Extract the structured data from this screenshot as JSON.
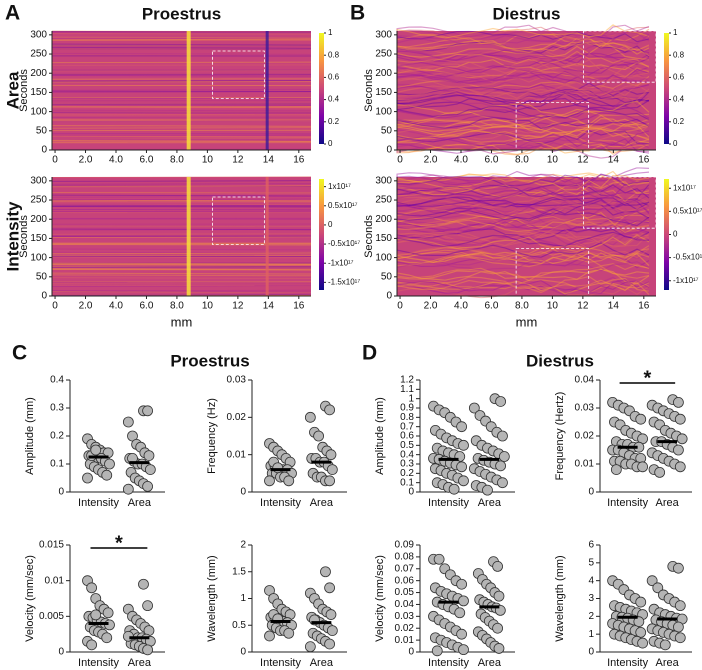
{
  "chart_data": [
    {
      "type": "heatmap",
      "panel": "A",
      "title": "Proestrus",
      "row_label": "Area",
      "ylabel": "Seconds",
      "xlim": [
        -0.2,
        16.8
      ],
      "xticks": [
        0,
        {
          "value": 2,
          "label": "2.0"
        },
        {
          "value": 4,
          "label": "4.0"
        },
        {
          "value": 6,
          "label": "6.0"
        },
        {
          "value": 8,
          "label": "8.0"
        },
        10,
        12,
        14,
        16
      ],
      "ylim": [
        0,
        310
      ],
      "yticks": [
        0,
        50,
        100,
        150,
        200,
        250,
        300
      ],
      "colorbar": {
        "lim": [
          0,
          1
        ],
        "ticks": [
          0,
          0.2,
          0.4,
          0.6,
          0.8,
          1
        ]
      }
    },
    {
      "type": "heatmap",
      "row_label": "Intensity",
      "ylabel": "Seconds",
      "xlabel": "mm",
      "xlim": [
        -0.2,
        16.8
      ],
      "xticks": [
        0,
        {
          "value": 2,
          "label": "2.0"
        },
        {
          "value": 4,
          "label": "4.0"
        },
        {
          "value": 6,
          "label": "6.0"
        },
        {
          "value": 8,
          "label": "8.0"
        },
        10,
        12,
        14,
        16
      ],
      "ylim": [
        0,
        310
      ],
      "yticks": [
        0,
        50,
        100,
        150,
        200,
        250,
        300
      ],
      "colorbar": {
        "lim": [
          -1.7e+17,
          1.2e+17
        ],
        "ticks": [
          {
            "value": 1e+17,
            "label": "1x10¹⁷"
          },
          {
            "value": 5e+16,
            "label": "0.5x10¹⁷"
          },
          0,
          {
            "value": -5e+16,
            "label": "-0.5x10¹⁷"
          },
          {
            "value": -1e+17,
            "label": "-1x10¹⁷"
          },
          {
            "value": -1.5e+17,
            "label": "-1.5x10¹⁷"
          }
        ]
      }
    },
    {
      "type": "heatmap",
      "panel": "B",
      "title": "Diestrus",
      "ylabel": "Seconds",
      "xlim": [
        -0.2,
        16.8
      ],
      "xticks": [
        0,
        {
          "value": 2,
          "label": "2.0"
        },
        {
          "value": 4,
          "label": "4.0"
        },
        {
          "value": 6,
          "label": "6.0"
        },
        {
          "value": 8,
          "label": "8.0"
        },
        10,
        12,
        14,
        16
      ],
      "ylim": [
        0,
        310
      ],
      "yticks": [
        0,
        50,
        100,
        150,
        200,
        250,
        300
      ],
      "colorbar": {
        "lim": [
          0,
          1
        ],
        "ticks": [
          0,
          0.2,
          0.4,
          0.6,
          0.8,
          1
        ]
      }
    },
    {
      "type": "heatmap",
      "ylabel": "Seconds",
      "xlabel": "mm",
      "xlim": [
        -0.2,
        16.8
      ],
      "xticks": [
        0,
        {
          "value": 2,
          "label": "2.0"
        },
        {
          "value": 4,
          "label": "4.0"
        },
        {
          "value": 6,
          "label": "6.0"
        },
        {
          "value": 8,
          "label": "8.0"
        },
        10,
        12,
        14,
        16
      ],
      "ylim": [
        0,
        310
      ],
      "yticks": [
        0,
        50,
        100,
        150,
        200,
        250,
        300
      ],
      "colorbar": {
        "lim": [
          -1.2e+17,
          1.2e+17
        ],
        "ticks": [
          {
            "value": 1e+17,
            "label": "1x10¹⁷"
          },
          {
            "value": 5e+16,
            "label": "0.5x10¹⁷"
          },
          0,
          {
            "value": -5e+16,
            "label": "-0.5x10¹⁷"
          },
          {
            "value": -1e+17,
            "label": "-1x10¹⁷"
          }
        ]
      }
    },
    {
      "type": "dot",
      "panel": "C",
      "title": "Proestrus",
      "ylabel": "Amplitude (mm)",
      "categories": [
        "Intensity",
        "Area"
      ],
      "color": "#b5b5b5",
      "ylim": [
        0,
        0.4
      ],
      "yticks": [
        0,
        0.1,
        0.2,
        0.3,
        0.4
      ],
      "medians": [
        0.125,
        0.105
      ],
      "values": [
        [
          0.19,
          0.17,
          0.16,
          0.15,
          0.14,
          0.14,
          0.13,
          0.13,
          0.12,
          0.12,
          0.11,
          0.1,
          0.1,
          0.09,
          0.08,
          0.07,
          0.06,
          0.05,
          0.13,
          0.15
        ],
        [
          0.29,
          0.29,
          0.25,
          0.2,
          0.17,
          0.16,
          0.14,
          0.13,
          0.12,
          0.11,
          0.1,
          0.1,
          0.09,
          0.08,
          0.07,
          0.05,
          0.04,
          0.03,
          0.02,
          0.01,
          0.12
        ]
      ]
    },
    {
      "type": "dot",
      "ylabel": "Frequency (Hz)",
      "categories": [
        "Intensity",
        "Area"
      ],
      "color": "#b5b5b5",
      "ylim": [
        0,
        0.03
      ],
      "yticks": [
        0,
        0.01,
        0.02,
        0.03
      ],
      "medians": [
        0.006,
        0.008
      ],
      "values": [
        [
          0.013,
          0.012,
          0.011,
          0.01,
          0.009,
          0.008,
          0.007,
          0.007,
          0.006,
          0.006,
          0.006,
          0.005,
          0.005,
          0.005,
          0.004,
          0.004,
          0.003,
          0.003,
          0.008,
          0.0065
        ],
        [
          0.023,
          0.022,
          0.02,
          0.016,
          0.015,
          0.012,
          0.011,
          0.01,
          0.009,
          0.009,
          0.008,
          0.008,
          0.007,
          0.006,
          0.005,
          0.004,
          0.004,
          0.003,
          0.003
        ]
      ]
    },
    {
      "type": "dot",
      "ylabel": "Velocity (mm/sec)",
      "categories": [
        "Intensity",
        "Area"
      ],
      "color": "#b5b5b5",
      "annotation": "*",
      "ylim": [
        0,
        0.015
      ],
      "yticks": [
        0,
        0.005,
        0.01,
        0.015
      ],
      "medians": [
        0.004,
        0.002
      ],
      "values": [
        [
          0.01,
          0.009,
          0.0075,
          0.0065,
          0.006,
          0.0055,
          0.005,
          0.0048,
          0.0045,
          0.0042,
          0.004,
          0.0038,
          0.0035,
          0.003,
          0.0028,
          0.0025,
          0.002,
          0.0015,
          0.001,
          0.0052
        ],
        [
          0.0095,
          0.0065,
          0.006,
          0.005,
          0.0045,
          0.004,
          0.0035,
          0.003,
          0.003,
          0.0025,
          0.002,
          0.002,
          0.0018,
          0.0015,
          0.0012,
          0.001,
          0.0008,
          0.0005,
          0.0003,
          0.0022
        ]
      ]
    },
    {
      "type": "dot",
      "ylabel": "Wavelength (mm)",
      "categories": [
        "Intensity",
        "Area"
      ],
      "color": "#b5b5b5",
      "ylim": [
        0,
        2
      ],
      "yticks": [
        0,
        0.5,
        1,
        1.5,
        2
      ],
      "medians": [
        0.57,
        0.55
      ],
      "values": [
        [
          1.15,
          1.0,
          0.9,
          0.8,
          0.75,
          0.7,
          0.65,
          0.6,
          0.6,
          0.57,
          0.55,
          0.5,
          0.5,
          0.45,
          0.4,
          0.4,
          0.35,
          0.3,
          0.7,
          0.62
        ],
        [
          1.5,
          1.2,
          1.1,
          1.0,
          0.9,
          0.8,
          0.75,
          0.7,
          0.65,
          0.6,
          0.55,
          0.5,
          0.45,
          0.4,
          0.35,
          0.3,
          0.25,
          0.2,
          0.15,
          0.1,
          0.6
        ]
      ]
    },
    {
      "type": "dot",
      "panel": "D",
      "title": "Diestrus",
      "ylabel": "Amplitude (mm)",
      "categories": [
        "Intensity",
        "Area"
      ],
      "color": "#b5b5b5",
      "ylim": [
        0,
        1.2
      ],
      "yticks": [
        0,
        0.1,
        0.2,
        0.3,
        0.4,
        0.5,
        0.6,
        0.7,
        0.8,
        0.9,
        1,
        1.1,
        1.2
      ],
      "medians": [
        0.35,
        0.35
      ],
      "values": [
        [
          0.92,
          0.88,
          0.85,
          0.8,
          0.75,
          0.7,
          0.66,
          0.62,
          0.58,
          0.55,
          0.52,
          0.5,
          0.47,
          0.44,
          0.42,
          0.4,
          0.38,
          0.36,
          0.35,
          0.33,
          0.31,
          0.29,
          0.27,
          0.25,
          0.23,
          0.2,
          0.18,
          0.15,
          0.12,
          0.1,
          0.08,
          0.05,
          0.03
        ],
        [
          1.0,
          0.97,
          0.9,
          0.82,
          0.76,
          0.7,
          0.64,
          0.6,
          0.55,
          0.5,
          0.47,
          0.44,
          0.41,
          0.38,
          0.36,
          0.34,
          0.32,
          0.3,
          0.28,
          0.25,
          0.22,
          0.19,
          0.16,
          0.13,
          0.1,
          0.07,
          0.05,
          0.02
        ]
      ]
    },
    {
      "type": "dot",
      "ylabel": "Frequency (Hertz)",
      "categories": [
        "Intensity",
        "Area"
      ],
      "color": "#b5b5b5",
      "annotation": "*",
      "ylim": [
        0,
        0.04
      ],
      "yticks": [
        0,
        0.01,
        0.02,
        0.03,
        0.04
      ],
      "medians": [
        0.016,
        0.018
      ],
      "values": [
        [
          0.032,
          0.031,
          0.03,
          0.029,
          0.027,
          0.026,
          0.025,
          0.024,
          0.022,
          0.021,
          0.02,
          0.019,
          0.018,
          0.017,
          0.017,
          0.016,
          0.016,
          0.015,
          0.015,
          0.014,
          0.013,
          0.012,
          0.012,
          0.011,
          0.011,
          0.01,
          0.01,
          0.009,
          0.009,
          0.008
        ],
        [
          0.033,
          0.032,
          0.031,
          0.03,
          0.029,
          0.028,
          0.027,
          0.026,
          0.025,
          0.024,
          0.022,
          0.021,
          0.02,
          0.019,
          0.018,
          0.018,
          0.017,
          0.016,
          0.015,
          0.014,
          0.013,
          0.012,
          0.011,
          0.01,
          0.009,
          0.008,
          0.007
        ]
      ]
    },
    {
      "type": "dot",
      "ylabel": "Velocity (mm/sec)",
      "categories": [
        "Intensity",
        "Area"
      ],
      "color": "#b5b5b5",
      "ylim": [
        0,
        0.09
      ],
      "yticks": [
        0,
        0.01,
        0.02,
        0.03,
        0.04,
        0.05,
        0.06,
        0.07,
        0.08,
        0.09
      ],
      "medians": [
        0.042,
        0.038
      ],
      "values": [
        [
          0.078,
          0.078,
          0.07,
          0.065,
          0.06,
          0.057,
          0.054,
          0.051,
          0.049,
          0.047,
          0.045,
          0.043,
          0.042,
          0.04,
          0.038,
          0.036,
          0.033,
          0.03,
          0.027,
          0.024,
          0.021,
          0.018,
          0.015,
          0.012,
          0.01,
          0.008,
          0.006,
          0.004,
          0.002,
          0.001
        ],
        [
          0.076,
          0.072,
          0.066,
          0.061,
          0.057,
          0.054,
          0.05,
          0.047,
          0.044,
          0.042,
          0.04,
          0.038,
          0.037,
          0.035,
          0.032,
          0.029,
          0.026,
          0.023,
          0.02,
          0.017,
          0.014,
          0.011,
          0.008,
          0.005,
          0.003
        ]
      ]
    },
    {
      "type": "dot",
      "ylabel": "Wavelength (mm)",
      "categories": [
        "Intensity",
        "Area"
      ],
      "color": "#b5b5b5",
      "ylim": [
        0,
        6
      ],
      "yticks": [
        0,
        1,
        2,
        3,
        4,
        5,
        6
      ],
      "medians": [
        1.95,
        1.85
      ],
      "values": [
        [
          4.0,
          3.8,
          3.5,
          3.2,
          3.0,
          2.8,
          2.6,
          2.5,
          2.4,
          2.3,
          2.2,
          2.1,
          2.0,
          1.95,
          1.9,
          1.8,
          1.7,
          1.6,
          1.5,
          1.4,
          1.3,
          1.2,
          1.1,
          1.0,
          0.9,
          0.8,
          0.7,
          0.6,
          0.5
        ],
        [
          4.8,
          4.7,
          4.0,
          3.6,
          3.2,
          3.0,
          2.8,
          2.6,
          2.4,
          2.2,
          2.1,
          2.0,
          1.9,
          1.85,
          1.8,
          1.7,
          1.6,
          1.5,
          1.4,
          1.3,
          1.2,
          1.1,
          1.0,
          0.9,
          0.8,
          0.6,
          0.5,
          0.4
        ]
      ]
    }
  ]
}
